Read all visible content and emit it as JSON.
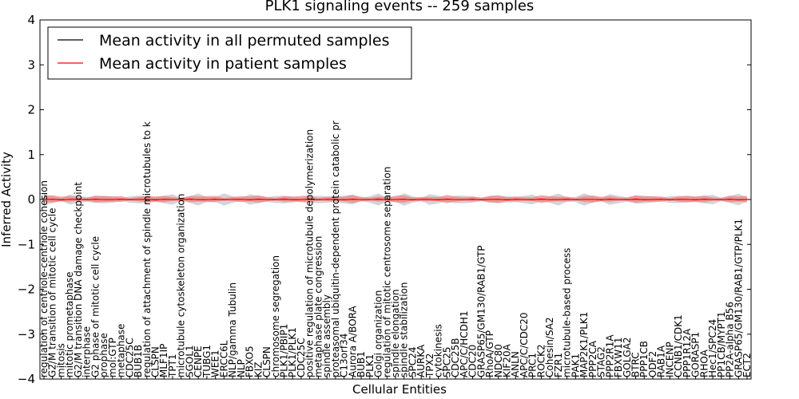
{
  "chart_data": {
    "type": "line",
    "title": "PLK1 signaling events -- 259 samples",
    "xlabel": "Cellular Entities",
    "ylabel": "Inferred Activity",
    "ylim": [
      -4,
      4
    ],
    "yticks": [
      "4",
      "3",
      "2",
      "1",
      "0",
      "−1",
      "−2",
      "−3",
      "−4"
    ],
    "legend_position": "top-left",
    "colors": {
      "permuted": "#000000",
      "patient": "#ff0000",
      "patient_band": "#f08080",
      "permuted_band": "#b0b0b0"
    },
    "series": [
      {
        "name": "Mean activity in all permuted samples",
        "color": "#000000"
      },
      {
        "name": "Mean activity in patient samples",
        "color": "#ff0000"
      }
    ],
    "categories": [
      "regulation of centriole-centriole cohesion",
      "G2/M transition of mitotic cell cycle",
      "mitosis",
      "mitotic prometaphase",
      "G2/M transition DNA damage checkpoint",
      "interphase",
      "G2 phase of mitotic cell cycle",
      "prophase",
      "mol:GTP",
      "metaphase",
      "CDC25C",
      "BUB1B",
      "regulation of attachment of spindle microtubules to k",
      "CLSPN",
      "MLF1IP",
      "TPT1",
      "microtubule cytoskeleton organization",
      "SGOL1",
      "CENPE",
      "TUBG1",
      "WEE1",
      "ERCC6L",
      "NLP/gamma Tubulin",
      "NLP",
      "FBXO5",
      "KIZ",
      "CLSPN",
      "chromosome segregation",
      "PLK1/PBIP1",
      "PLK1/PLK1",
      "CDC25C",
      "positive regulation of microtubule depolymerization",
      "metaphase plate congression",
      "spindle assembly",
      "proteasomal ubiquitin-dependent protein catabolic pr",
      "C13orf34",
      "Aurora A/BORA",
      "BUB1",
      "PLK1",
      "Golgi organization",
      "regulation of mitotic centrosome separation",
      "spindle elongation",
      "spindle stabilization",
      "SPC24",
      "AURKA",
      "TPX2",
      "cytokinesis",
      "SPC25",
      "CDC25B",
      "APC/C/HCDH1",
      "CDC20",
      "GRASP65/GM130/RAB1/GTP",
      "RhoA/GTP",
      "NDC80",
      "KIF20A",
      "ANLN",
      "APC/C/CDC20",
      "PRC1",
      "ROCK2",
      "Cohesin/SA2",
      "FZR1",
      "microtubule-based process",
      "PAK1",
      "MAP2K1/PLK1",
      "PPP2CA",
      "STAG2",
      "PPP2R1A",
      "FBXW11",
      "GOLGA2",
      "BTRC",
      "PPP1CB",
      "ODF2",
      "RAB1A",
      "INCENP",
      "CCNB1/CDK1",
      "PPP1R12A",
      "GORASP1",
      "RHOA",
      "Hec1/SPC24",
      "PP1CB/MYPT1",
      "PP2A-alpha B56",
      "GRASP65/GM130/RAB1/GTP/PLK1",
      "ECT2"
    ]
  }
}
